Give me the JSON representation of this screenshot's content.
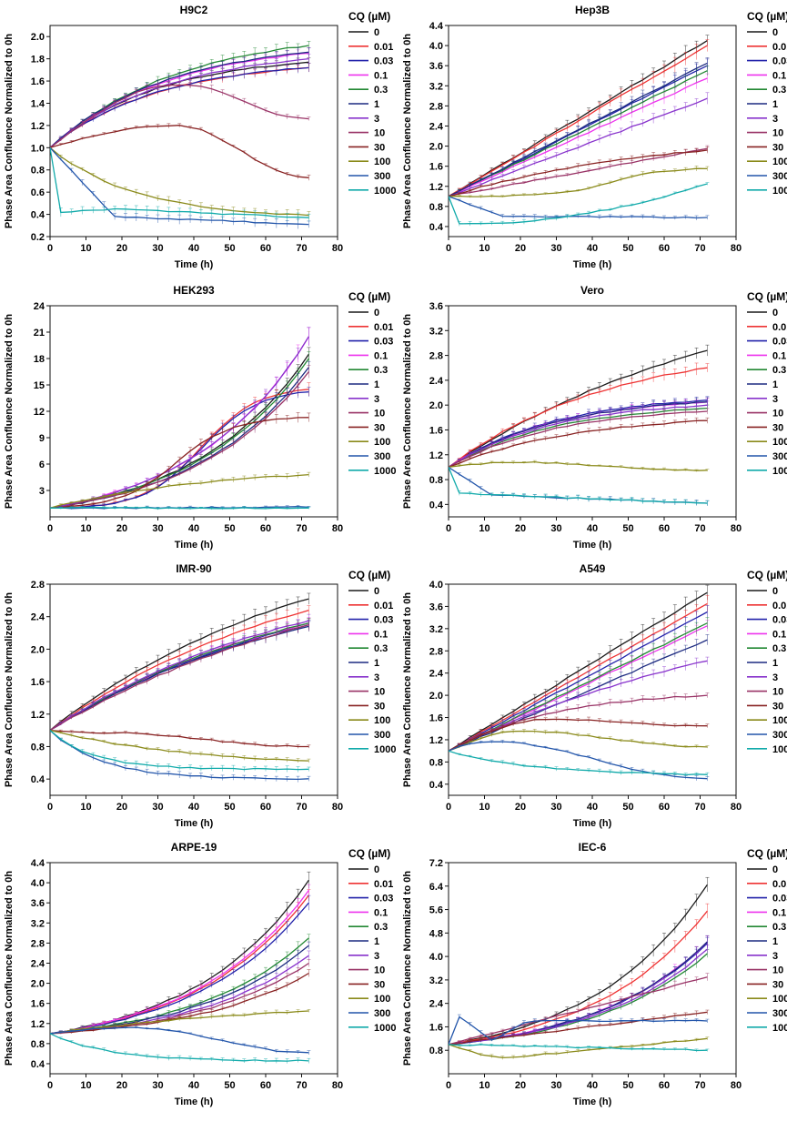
{
  "figure": {
    "legend_title": "CQ (µM)",
    "legend_labels": [
      "0",
      "0.01",
      "0.03",
      "0.1",
      "0.3",
      "1",
      "3",
      "10",
      "30",
      "100",
      "300",
      "1000"
    ],
    "series_colors": [
      "#1a1a1a",
      "#ee3333",
      "#2222aa",
      "#ee33ee",
      "#228833",
      "#1c2a80",
      "#8833cc",
      "#993366",
      "#882222",
      "#8a8a1a",
      "#2255aa",
      "#11aaaa"
    ]
  },
  "chart_data": [
    {
      "type": "line",
      "title": "H9C2",
      "xlabel": "Time (h)",
      "ylabel": "Phase Area Confluence Normalized to 0h",
      "xlim": [
        0,
        80
      ],
      "ylim": [
        0.2,
        2.1
      ],
      "xticks": [
        0,
        10,
        20,
        30,
        40,
        50,
        60,
        70,
        80
      ],
      "yticks": [
        0.2,
        0.4,
        0.6,
        0.8,
        1.0,
        1.2,
        1.4,
        1.6,
        1.8,
        2.0
      ],
      "ytick_labels": [
        "0.2",
        "0.4",
        "0.6",
        "0.8",
        "1.0",
        "1.2",
        "1.4",
        "1.6",
        "1.8",
        "2.0"
      ],
      "x": [
        0,
        3,
        6,
        9,
        12,
        15,
        18,
        21,
        24,
        27,
        30,
        33,
        36,
        39,
        42,
        45,
        48,
        51,
        54,
        57,
        60,
        63,
        66,
        69,
        72
      ],
      "series": [
        {
          "name": "0",
          "end": 1.77,
          "shape": "sat",
          "k": 2.4
        },
        {
          "name": "0.01",
          "end": 1.72,
          "shape": "sat",
          "k": 2.4
        },
        {
          "name": "0.03",
          "end": 1.72,
          "shape": "sat",
          "k": 2.4
        },
        {
          "name": "0.1",
          "end": 1.85,
          "shape": "sat",
          "k": 2.2
        },
        {
          "name": "0.3",
          "end": 1.92,
          "shape": "sat",
          "k": 2.0
        },
        {
          "name": "1",
          "end": 1.86,
          "shape": "sat",
          "k": 2.2
        },
        {
          "name": "3",
          "end": 1.8,
          "shape": "sat",
          "k": 2.2
        },
        {
          "name": "10",
          "end": 1.26,
          "shape": "peak",
          "peak": 1.57,
          "peak_t": 36
        },
        {
          "name": "30",
          "end": 0.73,
          "shape": "peak",
          "peak": 1.2,
          "peak_t": 35
        },
        {
          "name": "100",
          "end": 0.36,
          "shape": "decay",
          "k": 3.0
        },
        {
          "name": "300",
          "end": 0.31,
          "shape": "drop",
          "drop_t": 18,
          "drop_v": 0.38
        },
        {
          "name": "1000",
          "end": 0.37,
          "shape": "drop",
          "drop_t": 3,
          "drop_v": 0.42,
          "mid": 0.45,
          "mid_t": 18
        }
      ]
    },
    {
      "type": "line",
      "title": "Hep3B",
      "xlabel": "Time (h)",
      "ylabel": "Phase Area Confluence Normalized to 0h",
      "xlim": [
        0,
        80
      ],
      "ylim": [
        0.2,
        4.4
      ],
      "xticks": [
        0,
        10,
        20,
        30,
        40,
        50,
        60,
        70,
        80
      ],
      "yticks": [
        0.4,
        0.8,
        1.2,
        1.6,
        2.0,
        2.4,
        2.8,
        3.2,
        3.6,
        4.0,
        4.4
      ],
      "ytick_labels": [
        "0.4",
        "0.8",
        "1.2",
        "1.6",
        "2.0",
        "2.4",
        "2.8",
        "3.2",
        "3.6",
        "4.0",
        "4.4"
      ],
      "x": [
        0,
        3,
        6,
        9,
        12,
        15,
        18,
        21,
        24,
        27,
        30,
        33,
        36,
        39,
        42,
        45,
        48,
        51,
        54,
        57,
        60,
        63,
        66,
        69,
        72
      ],
      "series": [
        {
          "name": "0",
          "end": 4.1,
          "shape": "lin"
        },
        {
          "name": "0.01",
          "end": 4.0,
          "shape": "lin"
        },
        {
          "name": "0.03",
          "end": 3.6,
          "shape": "lin"
        },
        {
          "name": "0.1",
          "end": 3.35,
          "shape": "lin"
        },
        {
          "name": "0.3",
          "end": 3.5,
          "shape": "lin"
        },
        {
          "name": "1",
          "end": 3.65,
          "shape": "lin"
        },
        {
          "name": "3",
          "end": 2.95,
          "shape": "lin"
        },
        {
          "name": "10",
          "end": 1.95,
          "shape": "lin"
        },
        {
          "name": "30",
          "end": 1.92,
          "shape": "sat",
          "k": 1.2
        },
        {
          "name": "100",
          "end": 1.55,
          "shape": "sig",
          "mid_t": 45
        },
        {
          "name": "300",
          "end": 0.58,
          "shape": "drop",
          "drop_t": 15,
          "drop_v": 0.6
        },
        {
          "name": "1000",
          "end": 1.25,
          "shape": "dropup",
          "drop_t": 3,
          "drop_v": 0.45
        }
      ]
    },
    {
      "type": "line",
      "title": "HEK293",
      "xlabel": "Time (h)",
      "ylabel": "Phase Area Confluence Normalized to 0h",
      "xlim": [
        0,
        80
      ],
      "ylim": [
        0,
        24
      ],
      "xticks": [
        0,
        10,
        20,
        30,
        40,
        50,
        60,
        70,
        80
      ],
      "yticks": [
        3,
        6,
        9,
        12,
        15,
        18,
        21,
        24
      ],
      "ytick_labels": [
        "3",
        "6",
        "9",
        "12",
        "15",
        "18",
        "21",
        "24"
      ],
      "x": [
        0,
        3,
        6,
        9,
        12,
        15,
        18,
        21,
        24,
        27,
        30,
        33,
        36,
        39,
        42,
        45,
        48,
        51,
        54,
        57,
        60,
        63,
        66,
        69,
        72
      ],
      "series": [
        {
          "name": "0",
          "end": 18.5,
          "shape": "exp"
        },
        {
          "name": "0.01",
          "end": 14.5,
          "shape": "logi",
          "mid_t": 42
        },
        {
          "name": "0.03",
          "end": 14.2,
          "shape": "logi",
          "mid_t": 42
        },
        {
          "name": "0.1",
          "end": 20.5,
          "shape": "exp"
        },
        {
          "name": "0.3",
          "end": 18.0,
          "shape": "exp"
        },
        {
          "name": "1",
          "end": 17.0,
          "shape": "exp"
        },
        {
          "name": "3",
          "end": 20.5,
          "shape": "exp"
        },
        {
          "name": "10",
          "end": 16.5,
          "shape": "exp"
        },
        {
          "name": "30",
          "end": 11.3,
          "shape": "logi",
          "mid_t": 35
        },
        {
          "name": "100",
          "end": 4.8,
          "shape": "sat",
          "k": 1.6
        },
        {
          "name": "300",
          "end": 1.1,
          "shape": "flat"
        },
        {
          "name": "1000",
          "end": 1.0,
          "shape": "flat"
        }
      ]
    },
    {
      "type": "line",
      "title": "Vero",
      "xlabel": "Time (h)",
      "ylabel": "Phase Area Confluence Normalized to 0h",
      "xlim": [
        0,
        80
      ],
      "ylim": [
        0.2,
        3.6
      ],
      "xticks": [
        0,
        10,
        20,
        30,
        40,
        50,
        60,
        70,
        80
      ],
      "yticks": [
        0.4,
        0.8,
        1.2,
        1.6,
        2.0,
        2.4,
        2.8,
        3.2,
        3.6
      ],
      "ytick_labels": [
        "0.4",
        "0.8",
        "1.2",
        "1.6",
        "2.0",
        "2.4",
        "2.8",
        "3.2",
        "3.6"
      ],
      "x": [
        0,
        3,
        6,
        9,
        12,
        15,
        18,
        21,
        24,
        27,
        30,
        33,
        36,
        39,
        42,
        45,
        48,
        51,
        54,
        57,
        60,
        63,
        66,
        69,
        72
      ],
      "series": [
        {
          "name": "0",
          "end": 2.88,
          "shape": "sat",
          "k": 0.9
        },
        {
          "name": "0.01",
          "end": 2.6,
          "shape": "sat",
          "k": 1.6
        },
        {
          "name": "0.03",
          "end": 2.08,
          "shape": "sat",
          "k": 2.4
        },
        {
          "name": "0.1",
          "end": 2.05,
          "shape": "sat",
          "k": 2.4
        },
        {
          "name": "0.3",
          "end": 1.95,
          "shape": "sat",
          "k": 2.4
        },
        {
          "name": "1",
          "end": 2.05,
          "shape": "sat",
          "k": 2.4
        },
        {
          "name": "3",
          "end": 2.0,
          "shape": "sat",
          "k": 2.4
        },
        {
          "name": "10",
          "end": 1.9,
          "shape": "sat",
          "k": 2.4
        },
        {
          "name": "30",
          "end": 1.75,
          "shape": "sat",
          "k": 2.0
        },
        {
          "name": "100",
          "end": 0.95,
          "shape": "peak",
          "peak": 1.08,
          "peak_t": 18
        },
        {
          "name": "300",
          "end": 0.42,
          "shape": "drop",
          "drop_t": 12,
          "drop_v": 0.55
        },
        {
          "name": "1000",
          "end": 0.42,
          "shape": "drop",
          "drop_t": 3,
          "drop_v": 0.58
        }
      ]
    },
    {
      "type": "line",
      "title": "IMR-90",
      "xlabel": "Time (h)",
      "ylabel": "Phase Area Confluence Normalized to 0h",
      "xlim": [
        0,
        80
      ],
      "ylim": [
        0.2,
        2.8
      ],
      "xticks": [
        0,
        10,
        20,
        30,
        40,
        50,
        60,
        70,
        80
      ],
      "yticks": [
        0.4,
        0.8,
        1.2,
        1.6,
        2.0,
        2.4,
        2.8
      ],
      "ytick_labels": [
        "0.4",
        "0.8",
        "1.2",
        "1.6",
        "2.0",
        "2.4",
        "2.8"
      ],
      "x": [
        0,
        3,
        6,
        9,
        12,
        15,
        18,
        21,
        24,
        27,
        30,
        33,
        36,
        39,
        42,
        45,
        48,
        51,
        54,
        57,
        60,
        63,
        66,
        69,
        72
      ],
      "series": [
        {
          "name": "0",
          "end": 2.62,
          "shape": "sat",
          "k": 1.0
        },
        {
          "name": "0.01",
          "end": 2.48,
          "shape": "sat",
          "k": 1.0
        },
        {
          "name": "0.03",
          "end": 2.3,
          "shape": "sat",
          "k": 1.0
        },
        {
          "name": "0.1",
          "end": 2.32,
          "shape": "sat",
          "k": 1.0
        },
        {
          "name": "0.3",
          "end": 2.32,
          "shape": "sat",
          "k": 1.0
        },
        {
          "name": "1",
          "end": 2.28,
          "shape": "sat",
          "k": 1.0
        },
        {
          "name": "3",
          "end": 2.35,
          "shape": "sat",
          "k": 1.0
        },
        {
          "name": "10",
          "end": 2.3,
          "shape": "sat",
          "k": 0.8
        },
        {
          "name": "30",
          "end": 0.8,
          "shape": "peak",
          "peak": 0.97,
          "peak_t": 15
        },
        {
          "name": "100",
          "end": 0.55,
          "shape": "decay",
          "k": 1.8
        },
        {
          "name": "300",
          "end": 0.4,
          "shape": "decay",
          "k": 5.0
        },
        {
          "name": "1000",
          "end": 0.52,
          "shape": "decay",
          "k": 6.0
        }
      ]
    },
    {
      "type": "line",
      "title": "A549",
      "xlabel": "Time (h)",
      "ylabel": "Phase Area Confluence Normalized to 0h",
      "xlim": [
        0,
        80
      ],
      "ylim": [
        0.2,
        4.0
      ],
      "xticks": [
        0,
        10,
        20,
        30,
        40,
        50,
        60,
        70,
        80
      ],
      "yticks": [
        0.4,
        0.8,
        1.2,
        1.6,
        2.0,
        2.4,
        2.8,
        3.2,
        3.6,
        4.0
      ],
      "ytick_labels": [
        "0.4",
        "0.8",
        "1.2",
        "1.6",
        "2.0",
        "2.4",
        "2.8",
        "3.2",
        "3.6",
        "4.0"
      ],
      "x": [
        0,
        3,
        6,
        9,
        12,
        15,
        18,
        21,
        24,
        27,
        30,
        33,
        36,
        39,
        42,
        45,
        48,
        51,
        54,
        57,
        60,
        63,
        66,
        69,
        72
      ],
      "series": [
        {
          "name": "0",
          "end": 3.85,
          "shape": "lin"
        },
        {
          "name": "0.01",
          "end": 3.65,
          "shape": "lin"
        },
        {
          "name": "0.03",
          "end": 3.5,
          "shape": "lin"
        },
        {
          "name": "0.1",
          "end": 3.25,
          "shape": "lin"
        },
        {
          "name": "0.3",
          "end": 3.3,
          "shape": "lin"
        },
        {
          "name": "1",
          "end": 3.0,
          "shape": "lin"
        },
        {
          "name": "3",
          "end": 2.62,
          "shape": "sat",
          "k": 0.8
        },
        {
          "name": "10",
          "end": 2.0,
          "shape": "sat",
          "k": 2.5
        },
        {
          "name": "30",
          "end": 1.45,
          "shape": "peak",
          "peak": 1.57,
          "peak_t": 28
        },
        {
          "name": "100",
          "end": 1.07,
          "shape": "peak",
          "peak": 1.35,
          "peak_t": 20
        },
        {
          "name": "300",
          "end": 0.5,
          "shape": "peak",
          "peak": 1.17,
          "peak_t": 11
        },
        {
          "name": "1000",
          "end": 0.55,
          "shape": "decay",
          "k": 3.0
        }
      ]
    },
    {
      "type": "line",
      "title": "ARPE-19",
      "xlabel": "Time (h)",
      "ylabel": "Phase Area Confluence Normalized to 0h",
      "xlim": [
        0,
        80
      ],
      "ylim": [
        0.2,
        4.4
      ],
      "xticks": [
        0,
        10,
        20,
        30,
        40,
        50,
        60,
        70,
        80
      ],
      "yticks": [
        0.4,
        0.8,
        1.2,
        1.6,
        2.0,
        2.4,
        2.8,
        3.2,
        3.6,
        4.0,
        4.4
      ],
      "ytick_labels": [
        "0.4",
        "0.8",
        "1.2",
        "1.6",
        "2.0",
        "2.4",
        "2.8",
        "3.2",
        "3.6",
        "4.0",
        "4.4"
      ],
      "x": [
        0,
        3,
        6,
        9,
        12,
        15,
        18,
        21,
        24,
        27,
        30,
        33,
        36,
        39,
        42,
        45,
        48,
        51,
        54,
        57,
        60,
        63,
        66,
        69,
        72
      ],
      "series": [
        {
          "name": "0",
          "end": 4.05,
          "shape": "exp"
        },
        {
          "name": "0.01",
          "end": 3.75,
          "shape": "exp"
        },
        {
          "name": "0.03",
          "end": 3.6,
          "shape": "exp"
        },
        {
          "name": "0.1",
          "end": 3.85,
          "shape": "exp"
        },
        {
          "name": "0.3",
          "end": 2.9,
          "shape": "exp"
        },
        {
          "name": "1",
          "end": 2.75,
          "shape": "exp"
        },
        {
          "name": "3",
          "end": 2.55,
          "shape": "exp"
        },
        {
          "name": "10",
          "end": 2.4,
          "shape": "exp"
        },
        {
          "name": "30",
          "end": 2.2,
          "shape": "exp"
        },
        {
          "name": "100",
          "end": 1.45,
          "shape": "sat",
          "k": 1.0
        },
        {
          "name": "300",
          "end": 0.62,
          "shape": "peak",
          "peak": 1.12,
          "peak_t": 22
        },
        {
          "name": "1000",
          "end": 0.45,
          "shape": "decay",
          "k": 4.5
        }
      ]
    },
    {
      "type": "line",
      "title": "IEC-6",
      "xlabel": "Time (h)",
      "ylabel": "Phase Area Confluence Normalized to 0h",
      "xlim": [
        0,
        80
      ],
      "ylim": [
        0,
        7.2
      ],
      "xticks": [
        0,
        10,
        20,
        30,
        40,
        50,
        60,
        70,
        80
      ],
      "yticks": [
        0.8,
        1.6,
        2.4,
        3.2,
        4.0,
        4.8,
        5.6,
        6.4,
        7.2
      ],
      "ytick_labels": [
        "0.8",
        "1.6",
        "2.4",
        "3.2",
        "4.0",
        "4.8",
        "5.6",
        "6.4",
        "7.2"
      ],
      "x": [
        0,
        3,
        6,
        9,
        12,
        15,
        18,
        21,
        24,
        27,
        30,
        33,
        36,
        39,
        42,
        45,
        48,
        51,
        54,
        57,
        60,
        63,
        66,
        69,
        72
      ],
      "series": [
        {
          "name": "0",
          "end": 6.45,
          "shape": "exp"
        },
        {
          "name": "0.01",
          "end": 5.55,
          "shape": "exp"
        },
        {
          "name": "0.03",
          "end": 4.45,
          "shape": "exp"
        },
        {
          "name": "0.1",
          "end": 4.5,
          "shape": "exp"
        },
        {
          "name": "0.3",
          "end": 4.1,
          "shape": "exp"
        },
        {
          "name": "1",
          "end": 4.5,
          "shape": "exp"
        },
        {
          "name": "3",
          "end": 4.25,
          "shape": "exp"
        },
        {
          "name": "10",
          "end": 3.3,
          "shape": "lin"
        },
        {
          "name": "30",
          "end": 2.1,
          "shape": "lin"
        },
        {
          "name": "100",
          "end": 1.2,
          "shape": "dip",
          "dip": 0.55,
          "dip_t": 17
        },
        {
          "name": "300",
          "end": 1.8,
          "shape": "bump",
          "bump": 1.95,
          "bump_t": 3
        },
        {
          "name": "1000",
          "end": 0.8,
          "shape": "flat"
        }
      ]
    }
  ]
}
